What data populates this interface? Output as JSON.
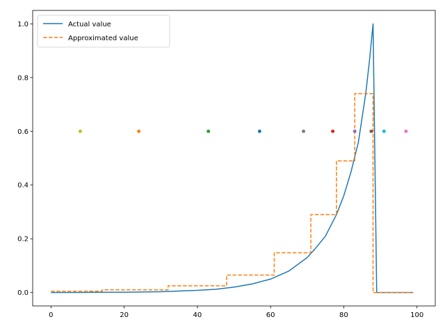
{
  "chart_data": {
    "type": "line",
    "title": "",
    "xlabel": "",
    "ylabel": "",
    "xlim": [
      -5,
      105
    ],
    "ylim": [
      -0.05,
      1.05
    ],
    "xticks": [
      0,
      20,
      40,
      60,
      80,
      100
    ],
    "yticks": [
      0.0,
      0.2,
      0.4,
      0.6,
      0.8,
      1.0
    ],
    "xtick_labels": [
      "0",
      "20",
      "40",
      "60",
      "80",
      "100"
    ],
    "ytick_labels": [
      "0.0",
      "0.2",
      "0.4",
      "0.6",
      "0.8",
      "1.0"
    ],
    "grid": false,
    "legend_position": "upper-left",
    "series": [
      {
        "name": "Actual value",
        "style": "solid",
        "color": "#1f77b4",
        "x": [
          0,
          10,
          20,
          30,
          40,
          45,
          50,
          55,
          60,
          65,
          70,
          72,
          75,
          78,
          80,
          82,
          84,
          86,
          87,
          88,
          89,
          99
        ],
        "y": [
          0.0,
          0.0005,
          0.001,
          0.003,
          0.008,
          0.012,
          0.02,
          0.032,
          0.05,
          0.08,
          0.13,
          0.16,
          0.21,
          0.29,
          0.36,
          0.45,
          0.56,
          0.74,
          0.86,
          1.0,
          0.0,
          0.0
        ]
      },
      {
        "name": "Approximated value",
        "style": "dashed",
        "color": "#ff7f0e",
        "x": [
          0,
          14,
          14,
          32,
          32,
          48,
          48,
          61,
          61,
          71,
          71,
          78,
          78,
          83,
          83,
          88,
          88,
          99
        ],
        "y": [
          0.005,
          0.005,
          0.01,
          0.01,
          0.025,
          0.025,
          0.065,
          0.065,
          0.148,
          0.148,
          0.29,
          0.29,
          0.49,
          0.49,
          0.74,
          0.74,
          0.0,
          0.0
        ]
      }
    ],
    "markers": [
      {
        "x": 8,
        "y": 0.6,
        "color": "#bcbd22"
      },
      {
        "x": 24,
        "y": 0.6,
        "color": "#ff7f0e"
      },
      {
        "x": 43,
        "y": 0.6,
        "color": "#2ca02c"
      },
      {
        "x": 57,
        "y": 0.6,
        "color": "#1f77b4"
      },
      {
        "x": 69,
        "y": 0.6,
        "color": "#7f7f7f"
      },
      {
        "x": 77,
        "y": 0.6,
        "color": "#d62728"
      },
      {
        "x": 83,
        "y": 0.6,
        "color": "#9467bd"
      },
      {
        "x": 87.5,
        "y": 0.6,
        "color": "#8c564b"
      },
      {
        "x": 91,
        "y": 0.6,
        "color": "#17becf"
      },
      {
        "x": 97,
        "y": 0.6,
        "color": "#e377c2"
      }
    ]
  }
}
